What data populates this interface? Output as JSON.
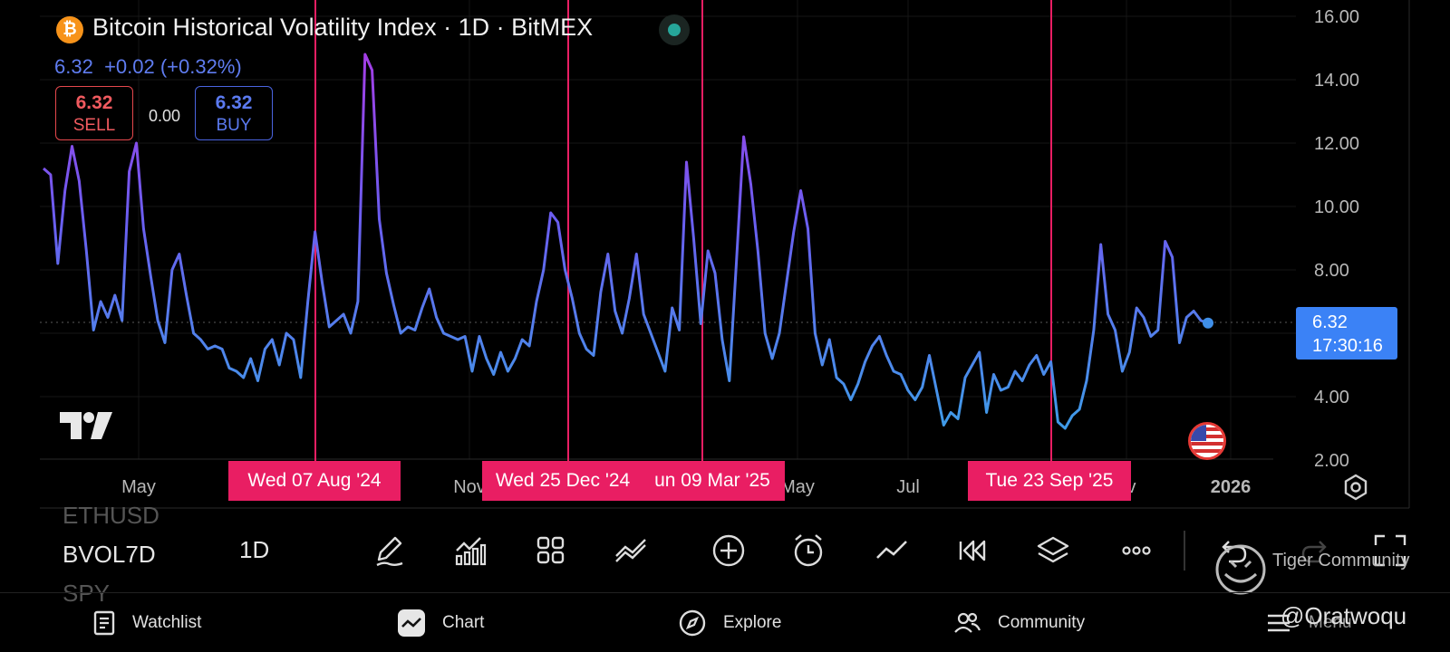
{
  "header": {
    "title": "Bitcoin Historical Volatility Index · 1D · BitMEX",
    "last_value": "6.32",
    "change": "+0.02 (+0.32%)"
  },
  "trade": {
    "sell_price": "6.32",
    "sell_label": "SELL",
    "spread": "0.00",
    "buy_price": "6.32",
    "buy_label": "BUY"
  },
  "price_tag": {
    "value": "6.32",
    "countdown": "17:30:16"
  },
  "chart_data": {
    "type": "line",
    "yticks": [
      "16.00",
      "14.00",
      "12.00",
      "10.00",
      "8.00",
      "6.00",
      "4.00",
      "2.00"
    ],
    "ylim": [
      2,
      16
    ],
    "xticks": [
      "May",
      "Nov",
      "May",
      "Jul",
      "ov",
      "2026"
    ],
    "grid": true,
    "crosshair_dates": [
      "Wed 07 Aug '24",
      "Wed 25 Dec '24",
      "un 09 Mar '25",
      "Tue 23 Sep '25"
    ],
    "colors": {
      "high": "#a43ee6",
      "low": "#3f9be8",
      "crosshair": "#e91e63",
      "price_tag": "#3b82f6"
    },
    "series": [
      {
        "values": [
          11.2,
          11.0,
          8.2,
          10.5,
          11.9,
          10.8,
          8.6,
          6.1,
          7.0,
          6.5,
          7.2,
          6.4,
          11.1,
          12.0,
          9.3,
          7.8,
          6.4,
          5.7,
          8.0,
          8.5,
          7.2,
          6.0,
          5.8,
          5.5,
          5.6,
          5.5,
          4.9,
          4.8,
          4.6,
          5.2,
          4.5,
          5.5,
          5.8,
          5.0,
          6.0,
          5.8,
          4.6,
          7.0,
          9.2,
          7.6,
          6.2,
          6.4,
          6.6,
          6.0,
          7.0,
          14.8,
          14.3,
          9.6,
          7.9,
          6.9,
          6.0,
          6.2,
          6.1,
          6.8,
          7.4,
          6.5,
          6.0,
          5.9,
          5.8,
          5.9,
          4.8,
          5.9,
          5.2,
          4.7,
          5.4,
          4.8,
          5.2,
          5.8,
          5.6,
          7.0,
          8.0,
          9.8,
          9.5,
          8.0,
          7.1,
          6.0,
          5.5,
          5.3,
          7.3,
          8.5,
          6.7,
          6.0,
          7.1,
          8.5,
          6.6,
          6.0,
          5.4,
          4.8,
          6.8,
          6.1,
          11.4,
          9.0,
          6.3,
          8.6,
          7.9,
          5.8,
          4.5,
          8.3,
          12.2,
          10.7,
          8.6,
          6.0,
          5.2,
          6.0,
          7.6,
          9.2,
          10.5,
          9.3,
          6.0,
          5.0,
          5.8,
          4.6,
          4.4,
          3.9,
          4.4,
          5.1,
          5.6,
          5.9,
          5.3,
          4.8,
          4.7,
          4.2,
          3.9,
          4.3,
          5.3,
          4.2,
          3.1,
          3.5,
          3.3,
          4.6,
          5.0,
          5.4,
          3.5,
          4.7,
          4.2,
          4.3,
          4.8,
          4.5,
          5.0,
          5.3,
          4.7,
          5.1,
          3.2,
          3.0,
          3.4,
          3.6,
          4.5,
          6.1,
          8.8,
          6.6,
          6.1,
          4.8,
          5.4,
          6.8,
          6.5,
          5.9,
          6.1,
          8.9,
          8.4,
          5.7,
          6.5,
          6.7,
          6.4,
          6.32
        ]
      }
    ]
  },
  "toolbar": {
    "symbols": [
      "ETHUSD",
      "BVOL7D",
      "SPY"
    ],
    "interval": "1D"
  },
  "watermark": "Tiger Community",
  "handle": "@Oratwoqu",
  "nav": {
    "watchlist": "Watchlist",
    "chart": "Chart",
    "explore": "Explore",
    "community": "Community",
    "menu": "Menu"
  }
}
